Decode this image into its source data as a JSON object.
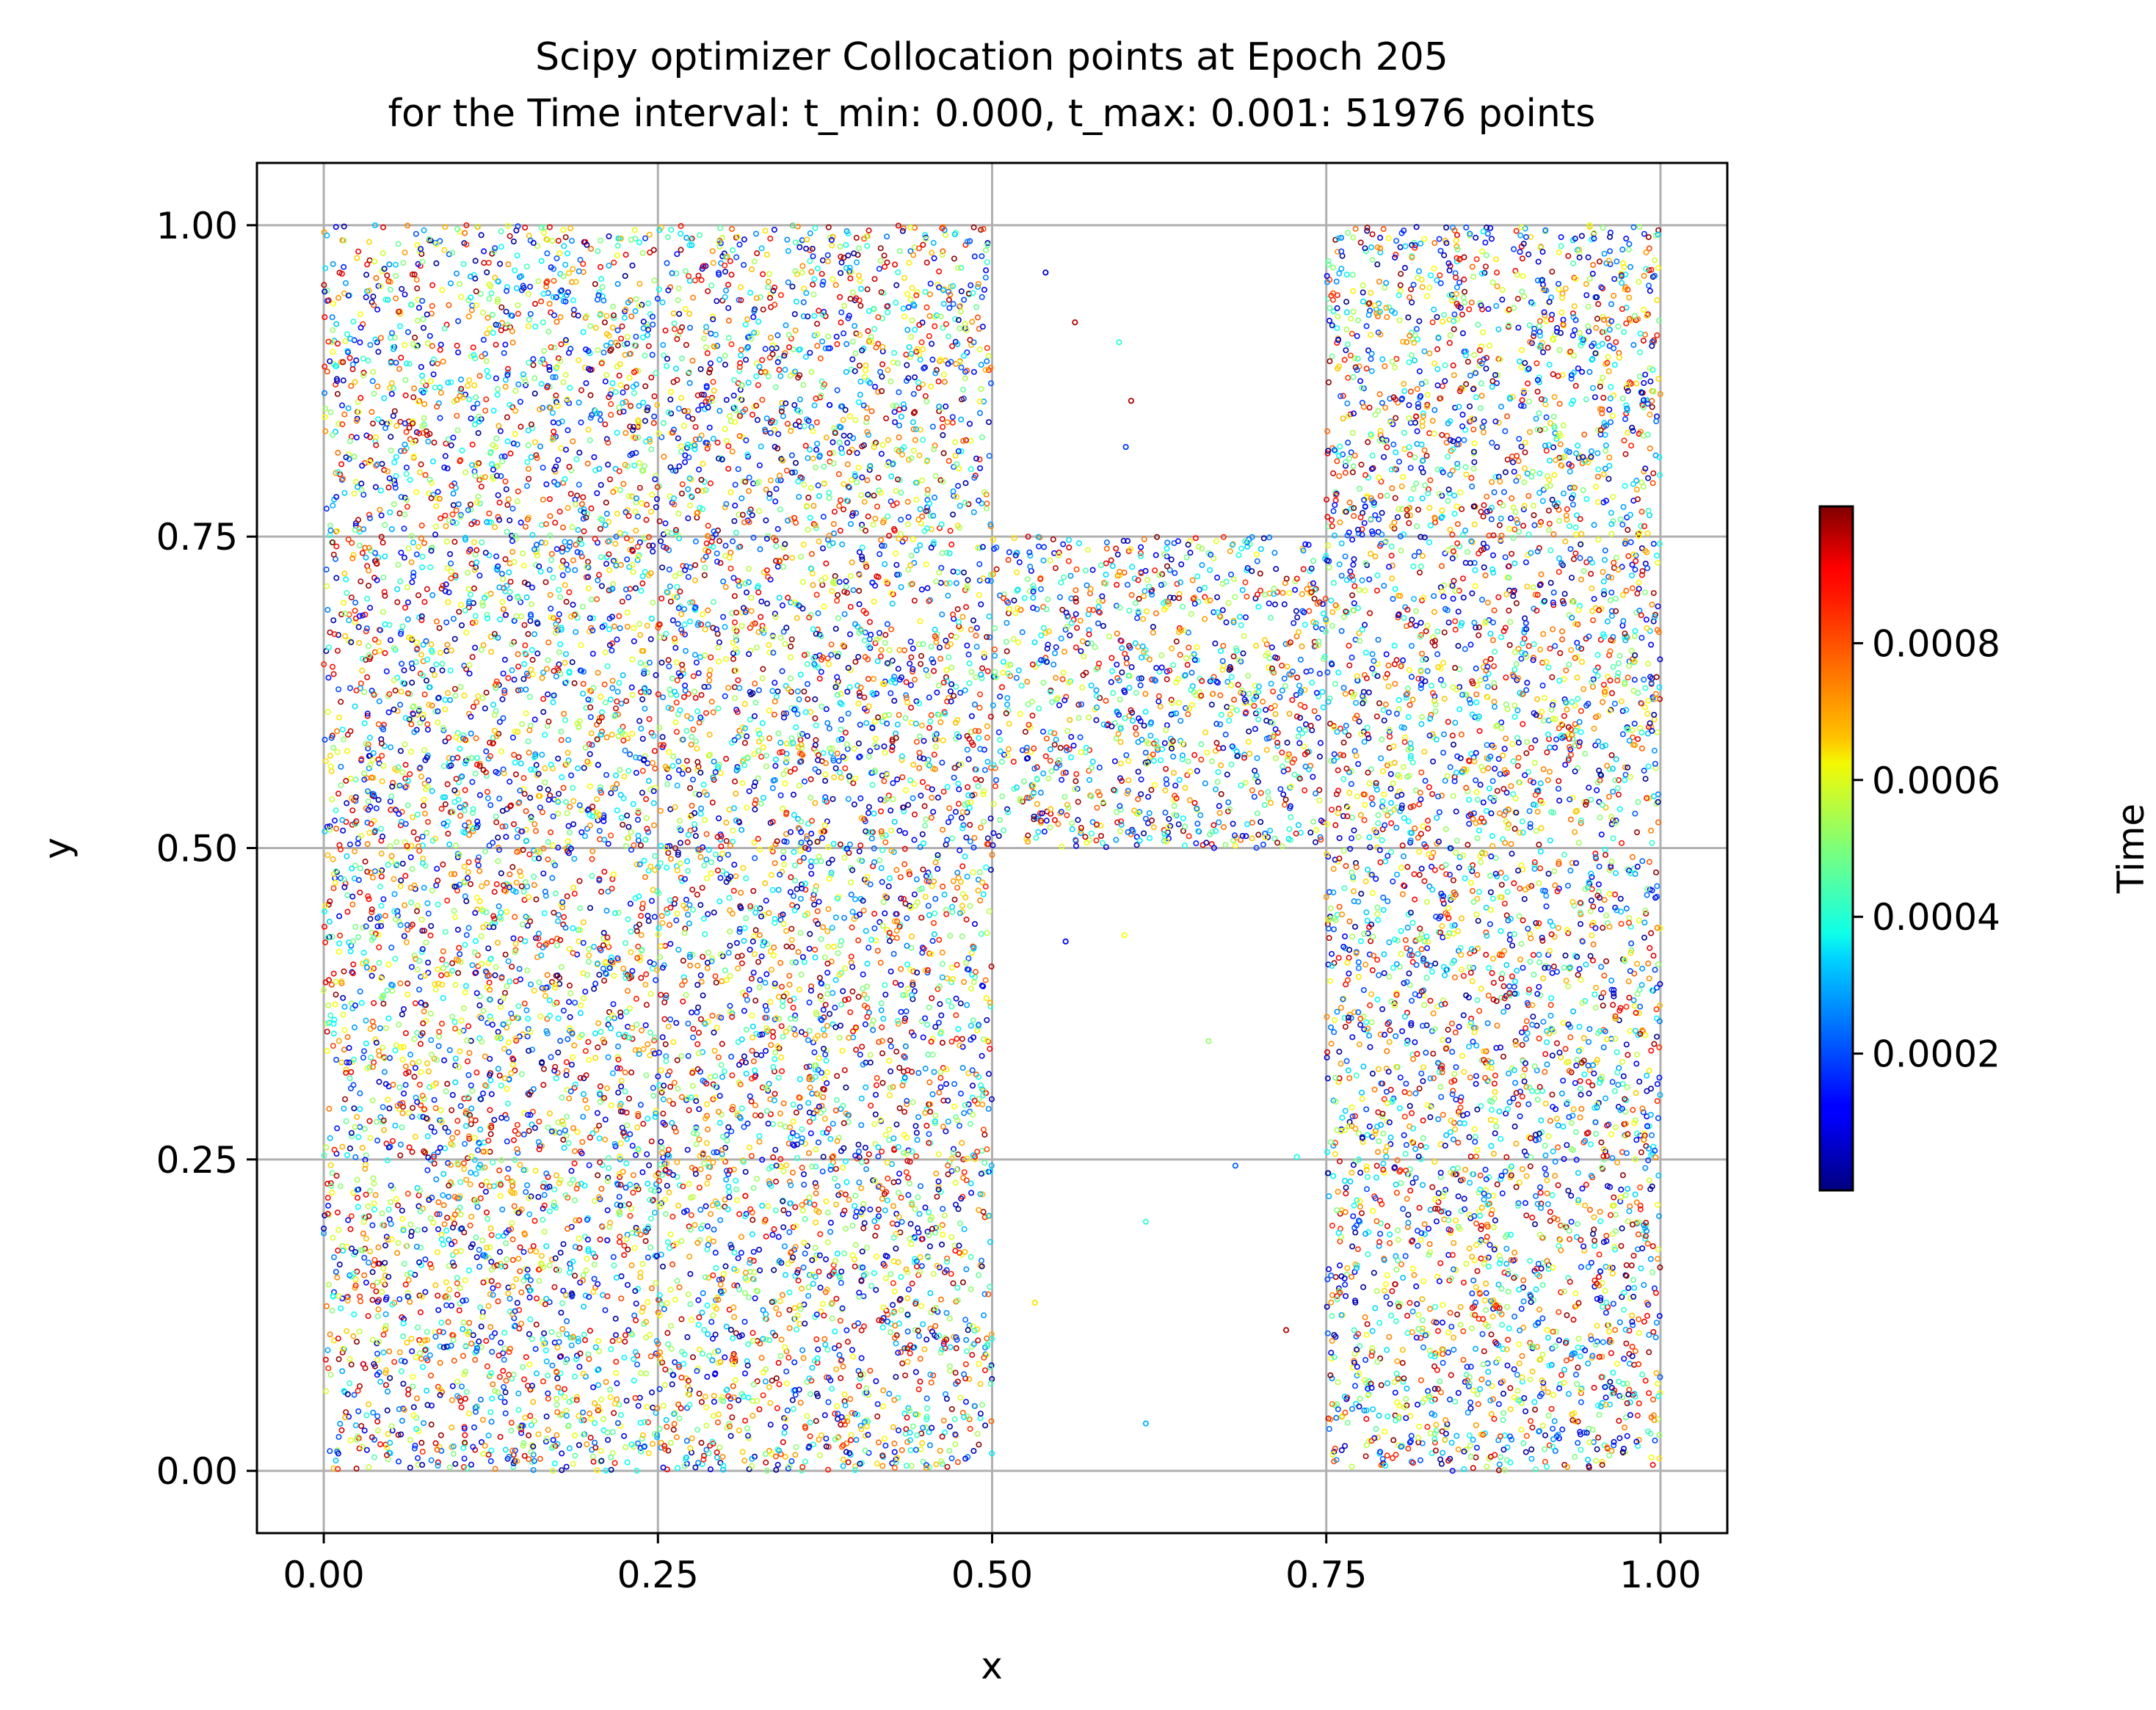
{
  "chart_data": {
    "type": "scatter",
    "title_line1": "Scipy optimizer Collocation points at Epoch 205",
    "title_line2": "for the Time interval: t_min: 0.000, t_max: 0.001: 51976 points",
    "xlabel": "x",
    "ylabel": "y",
    "xlim": [
      -0.05,
      1.05
    ],
    "ylim": [
      -0.05,
      1.05
    ],
    "x_ticks": [
      0.0,
      0.25,
      0.5,
      0.75,
      1.0
    ],
    "x_tick_labels": [
      "0.00",
      "0.25",
      "0.50",
      "0.75",
      "1.00"
    ],
    "y_ticks": [
      0.0,
      0.25,
      0.5,
      0.75,
      1.0
    ],
    "y_tick_labels": [
      "0.00",
      "0.25",
      "0.50",
      "0.75",
      "1.00"
    ],
    "grid": true,
    "colormap": "jet",
    "colorbar": {
      "label": "Time",
      "range": [
        0.0,
        0.001
      ],
      "ticks": [
        0.0002,
        0.0004,
        0.0006,
        0.0008
      ],
      "tick_labels": [
        "0.0002",
        "0.0004",
        "0.0006",
        "0.0008"
      ]
    },
    "total_points": 51976,
    "point_regions_note_free": [
      {
        "x_range": [
          0.0,
          0.5
        ],
        "y_range": [
          0.0,
          1.0
        ]
      },
      {
        "x_range": [
          0.5,
          0.75
        ],
        "y_range": [
          0.5,
          0.75
        ]
      },
      {
        "x_range": [
          0.75,
          1.0
        ],
        "y_range": [
          0.0,
          1.0
        ]
      }
    ],
    "isolated_points": [
      {
        "x": 0.54,
        "y": 0.962,
        "t": 8e-05
      },
      {
        "x": 0.562,
        "y": 0.922,
        "t": 0.00095
      },
      {
        "x": 0.595,
        "y": 0.906,
        "t": 0.00042
      },
      {
        "x": 0.604,
        "y": 0.859,
        "t": 0.00096
      },
      {
        "x": 0.6,
        "y": 0.822,
        "t": 0.00018
      },
      {
        "x": 0.555,
        "y": 0.425,
        "t": 0.00012
      },
      {
        "x": 0.599,
        "y": 0.43,
        "t": 0.00062
      },
      {
        "x": 0.662,
        "y": 0.345,
        "t": 0.00052
      },
      {
        "x": 0.728,
        "y": 0.252,
        "t": 0.0004
      },
      {
        "x": 0.682,
        "y": 0.245,
        "t": 0.00022
      },
      {
        "x": 0.615,
        "y": 0.2,
        "t": 0.00042
      },
      {
        "x": 0.532,
        "y": 0.135,
        "t": 0.00065
      },
      {
        "x": 0.72,
        "y": 0.113,
        "t": 0.00095
      },
      {
        "x": 0.615,
        "y": 0.038,
        "t": 0.0003
      }
    ]
  }
}
